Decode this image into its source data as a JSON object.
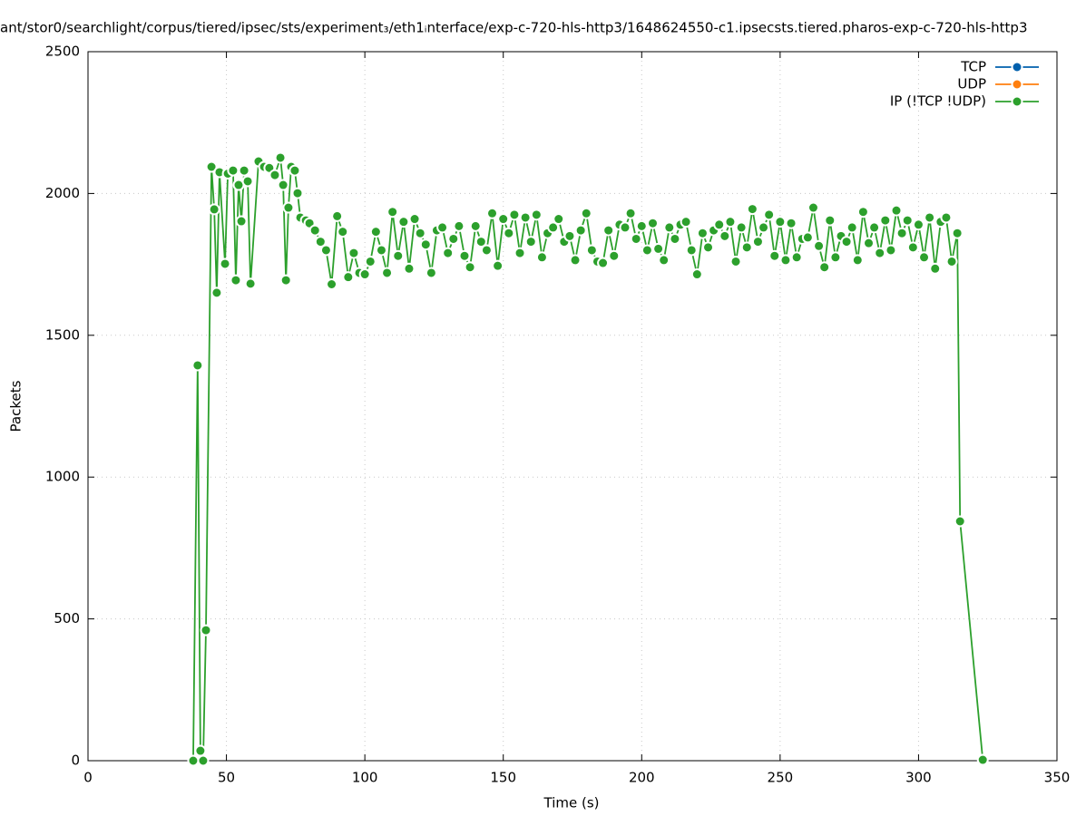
{
  "chart_data": {
    "type": "line",
    "title": "ant/stor0/searchlight/corpus/tiered/ipsec/sts/experiment₃/eth1ᵢnterface/exp-c-720-hls-http3/1648624550-c1.ipsecsts.tiered.pharos-exp-c-720-hls-http3",
    "x_label": "Time (s)",
    "y_label": "Packets",
    "xlim": [
      0,
      350
    ],
    "xticks": [
      0,
      50,
      100,
      150,
      200,
      250,
      300,
      350
    ],
    "ylim": [
      0,
      2500
    ],
    "yticks": [
      0,
      500,
      1000,
      1500,
      2000,
      2500
    ],
    "grid": true,
    "legend": "top-right",
    "series": [
      {
        "name": "TCP",
        "color": "#0060ad",
        "x": [],
        "values": []
      },
      {
        "name": "UDP",
        "color": "#ff7f0e",
        "x": [],
        "values": []
      },
      {
        "name": "IP (!TCP  !UDP)",
        "color": "#2ca02c",
        "x": [
          38,
          39.6,
          40.6,
          41.6,
          42.6,
          44.6,
          45.6,
          46.5,
          47.5,
          49.5,
          50.5,
          52.4,
          53.4,
          54.4,
          55.4,
          56.4,
          57.7,
          58.7,
          61.6,
          63.6,
          65.5,
          67.5,
          69.5,
          70.5,
          71.5,
          72.4,
          73.4,
          74.7,
          75.7,
          76.7,
          78.7,
          80,
          82,
          84,
          86,
          88,
          90,
          92,
          94,
          96,
          98,
          100,
          102,
          104,
          106,
          108,
          110,
          112,
          114,
          116,
          118,
          120,
          122,
          124,
          126,
          128,
          130,
          132,
          134,
          136,
          138,
          140,
          142,
          144,
          146,
          148,
          150,
          152,
          154,
          156,
          158,
          160,
          162,
          164,
          166,
          168,
          170,
          172,
          174,
          176,
          178,
          180,
          182,
          184,
          186,
          188,
          190,
          192,
          194,
          196,
          198,
          200,
          202,
          204,
          206,
          208,
          210,
          212,
          214,
          216,
          218,
          220,
          222,
          224,
          226,
          228,
          230,
          232,
          234,
          236,
          238,
          240,
          242,
          244,
          246,
          248,
          250,
          252,
          254,
          256,
          258,
          260,
          262,
          264,
          266,
          268,
          270,
          272,
          274,
          276,
          278,
          280,
          282,
          284,
          286,
          288,
          290,
          292,
          294,
          296,
          298,
          300,
          302,
          304,
          306,
          308,
          310,
          312,
          314,
          315,
          323.2
        ],
        "values": [
          0,
          1394,
          35,
          0,
          460,
          2094,
          1944,
          1650,
          2075,
          1752,
          2070,
          2081,
          1694,
          2030,
          1902,
          2081,
          2043,
          1682,
          2113,
          2094,
          2090,
          2065,
          2126,
          2030,
          1694,
          1950,
          2094,
          2081,
          2001,
          1915,
          1905,
          1895,
          1870,
          1830,
          1800,
          1680,
          1920,
          1865,
          1705,
          1790,
          1720,
          1715,
          1760,
          1865,
          1800,
          1720,
          1935,
          1780,
          1900,
          1735,
          1910,
          1860,
          1820,
          1720,
          1870,
          1880,
          1790,
          1840,
          1885,
          1780,
          1740,
          1885,
          1830,
          1800,
          1930,
          1745,
          1910,
          1860,
          1925,
          1790,
          1915,
          1830,
          1925,
          1775,
          1860,
          1880,
          1910,
          1830,
          1850,
          1765,
          1870,
          1930,
          1800,
          1760,
          1755,
          1870,
          1780,
          1890,
          1880,
          1930,
          1840,
          1885,
          1800,
          1895,
          1805,
          1765,
          1880,
          1840,
          1890,
          1900,
          1800,
          1715,
          1860,
          1810,
          1870,
          1890,
          1850,
          1900,
          1760,
          1880,
          1810,
          1945,
          1830,
          1880,
          1925,
          1780,
          1900,
          1765,
          1895,
          1775,
          1840,
          1845,
          1950,
          1815,
          1740,
          1905,
          1775,
          1850,
          1830,
          1880,
          1765,
          1935,
          1825,
          1880,
          1790,
          1905,
          1800,
          1940,
          1860,
          1905,
          1810,
          1890,
          1775,
          1915,
          1735,
          1900,
          1915,
          1760,
          1860,
          844,
          3
        ]
      }
    ]
  }
}
